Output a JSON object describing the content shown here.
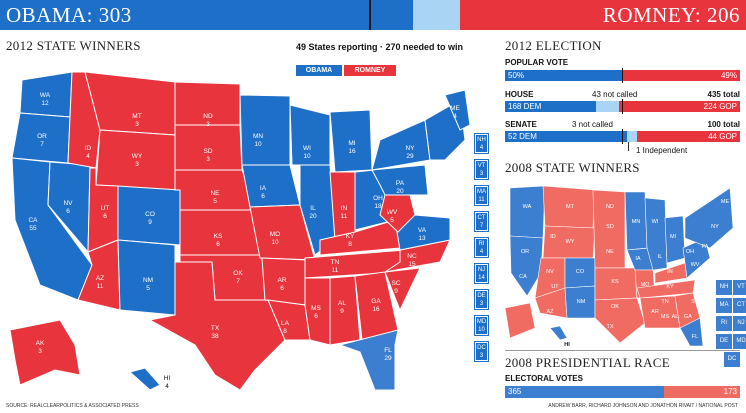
{
  "header": {
    "obama_total": "OBAMA: 303",
    "romney_total": "ROMNEY: 206",
    "colors": {
      "obama": "#1d6fc8",
      "romney": "#e8343d",
      "uncalled": "#a9d4f3"
    }
  },
  "map2012": {
    "title": "2012 STATE WINNERS",
    "reporting": "49 States reporting · 270 needed to win",
    "legend_obama": "OBAMA",
    "legend_romney": "ROMNEY",
    "states": [
      {
        "abbr": "WA",
        "ev": "12",
        "winner": "obama"
      },
      {
        "abbr": "OR",
        "ev": "7",
        "winner": "obama"
      },
      {
        "abbr": "CA",
        "ev": "55",
        "winner": "obama"
      },
      {
        "abbr": "NV",
        "ev": "6",
        "winner": "obama"
      },
      {
        "abbr": "ID",
        "ev": "4",
        "winner": "romney"
      },
      {
        "abbr": "MT",
        "ev": "3",
        "winner": "romney"
      },
      {
        "abbr": "WY",
        "ev": "3",
        "winner": "romney"
      },
      {
        "abbr": "UT",
        "ev": "6",
        "winner": "romney"
      },
      {
        "abbr": "AZ",
        "ev": "11",
        "winner": "romney"
      },
      {
        "abbr": "CO",
        "ev": "9",
        "winner": "obama"
      },
      {
        "abbr": "NM",
        "ev": "5",
        "winner": "obama"
      },
      {
        "abbr": "ND",
        "ev": "3",
        "winner": "romney"
      },
      {
        "abbr": "SD",
        "ev": "3",
        "winner": "romney"
      },
      {
        "abbr": "NE",
        "ev": "5",
        "winner": "romney"
      },
      {
        "abbr": "KS",
        "ev": "6",
        "winner": "romney"
      },
      {
        "abbr": "OK",
        "ev": "7",
        "winner": "romney"
      },
      {
        "abbr": "TX",
        "ev": "38",
        "winner": "romney"
      },
      {
        "abbr": "MN",
        "ev": "10",
        "winner": "obama"
      },
      {
        "abbr": "IA",
        "ev": "6",
        "winner": "obama"
      },
      {
        "abbr": "MO",
        "ev": "10",
        "winner": "romney"
      },
      {
        "abbr": "AR",
        "ev": "6",
        "winner": "romney"
      },
      {
        "abbr": "LA",
        "ev": "8",
        "winner": "romney"
      },
      {
        "abbr": "WI",
        "ev": "10",
        "winner": "obama"
      },
      {
        "abbr": "IL",
        "ev": "20",
        "winner": "obama"
      },
      {
        "abbr": "MI",
        "ev": "16",
        "winner": "obama"
      },
      {
        "abbr": "IN",
        "ev": "11",
        "winner": "romney"
      },
      {
        "abbr": "OH",
        "ev": "18",
        "winner": "obama"
      },
      {
        "abbr": "KY",
        "ev": "8",
        "winner": "romney"
      },
      {
        "abbr": "TN",
        "ev": "11",
        "winner": "romney"
      },
      {
        "abbr": "MS",
        "ev": "6",
        "winner": "romney"
      },
      {
        "abbr": "AL",
        "ev": "9",
        "winner": "romney"
      },
      {
        "abbr": "GA",
        "ev": "16",
        "winner": "romney"
      },
      {
        "abbr": "FL",
        "ev": "29",
        "winner": "uncalled"
      },
      {
        "abbr": "SC",
        "ev": "9",
        "winner": "romney"
      },
      {
        "abbr": "NC",
        "ev": "15",
        "winner": "romney"
      },
      {
        "abbr": "VA",
        "ev": "13",
        "winner": "obama"
      },
      {
        "abbr": "WV",
        "ev": "5",
        "winner": "romney"
      },
      {
        "abbr": "PA",
        "ev": "20",
        "winner": "obama"
      },
      {
        "abbr": "NY",
        "ev": "29",
        "winner": "obama"
      },
      {
        "abbr": "ME",
        "ev": "4",
        "winner": "obama"
      },
      {
        "abbr": "AK",
        "ev": "3",
        "winner": "romney"
      },
      {
        "abbr": "HI",
        "ev": "4",
        "winner": "obama"
      }
    ],
    "small_states": [
      {
        "abbr": "NH",
        "ev": "4"
      },
      {
        "abbr": "VT",
        "ev": "3"
      },
      {
        "abbr": "MA",
        "ev": "11"
      },
      {
        "abbr": "CT",
        "ev": "7"
      },
      {
        "abbr": "RI",
        "ev": "4"
      },
      {
        "abbr": "NJ",
        "ev": "14"
      },
      {
        "abbr": "DE",
        "ev": "3"
      },
      {
        "abbr": "MD",
        "ev": "10"
      },
      {
        "abbr": "DC",
        "ev": "3"
      }
    ]
  },
  "election2012": {
    "title": "2012 ELECTION",
    "popular_label": "POPULAR VOTE",
    "popular_obama": "50%",
    "popular_romney": "49%",
    "popular_obama_share": 0.5,
    "house_label": "HOUSE",
    "house_not_called": "43 not called",
    "house_total": "435 total",
    "house_dem": "168 DEM",
    "house_gop": "224 GOP",
    "house_dem_seats": 168,
    "house_gop_seats": 224,
    "house_total_seats": 435,
    "senate_label": "SENATE",
    "senate_not_called": "3 not called",
    "senate_total": "100 total",
    "senate_dem": "52 DEM",
    "senate_gop": "44 GOP",
    "senate_dem_seats": 52,
    "senate_gop_seats": 44,
    "senate_total_seats": 100,
    "senate_independent": "1 Independent"
  },
  "map2008": {
    "title": "2008 STATE WINNERS",
    "small_states": [
      "NH",
      "VT",
      "MA",
      "CT",
      "RI",
      "NJ",
      "DE",
      "MD",
      "DC"
    ],
    "hawaii_label": "HI"
  },
  "race2008": {
    "title": "2008 PRESIDENTIAL RACE",
    "ev_label": "ELECTORAL VOTES",
    "obama_ev": "365",
    "mccain_ev": "173",
    "obama_share": 0.678
  },
  "footer": {
    "source": "SOURCE: REALCLEARPOLITICS & ASSOCIATED PRESS",
    "credit": "ANDREW BARR, RICHARD JOHNSON AND JONATHON RIVAIT / NATIONAL POST"
  }
}
